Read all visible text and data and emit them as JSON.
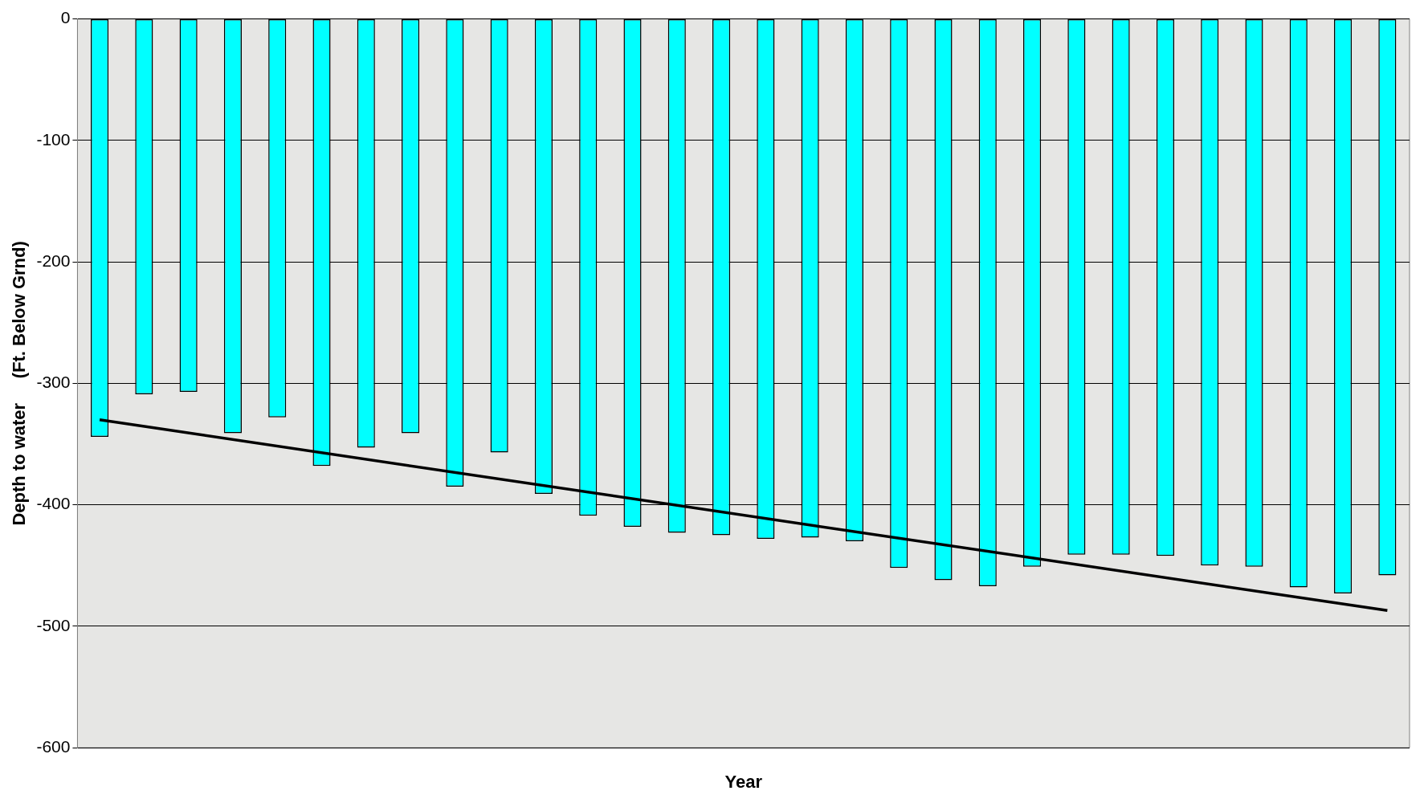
{
  "chart_data": {
    "type": "bar",
    "xlabel": "Year",
    "ylabel": "Depth to water     (Ft. Below Grnd)",
    "categories": [
      null,
      null,
      null,
      null,
      null,
      null,
      null,
      null,
      null,
      null,
      null,
      null,
      null,
      null,
      null,
      null,
      null,
      null,
      null,
      null,
      null,
      null,
      null,
      null,
      null,
      null,
      null,
      null,
      null,
      null
    ],
    "series": [
      {
        "color": "#00ffff",
        "values": [
          -344,
          -309,
          -307,
          -341,
          -328,
          -368,
          -353,
          -341,
          -385,
          -357,
          -391,
          -409,
          -418,
          -423,
          -425,
          -428,
          -427,
          -430,
          -452,
          -462,
          -467,
          -451,
          -441,
          -441,
          -442,
          -450,
          -451,
          -468,
          -473,
          -458
        ]
      },
      {
        "type": "line",
        "color": "#000000",
        "marker": "none",
        "values": [
          -330,
          null,
          null,
          null,
          null,
          null,
          null,
          null,
          null,
          null,
          null,
          null,
          null,
          null,
          null,
          null,
          null,
          null,
          null,
          null,
          null,
          null,
          null,
          null,
          null,
          null,
          null,
          null,
          null,
          -487
        ]
      }
    ],
    "ylim": [
      -600,
      0
    ],
    "yticks": [
      -600,
      -500,
      -400,
      -300,
      -200,
      -100,
      0
    ],
    "grid": "y",
    "legend": false
  }
}
